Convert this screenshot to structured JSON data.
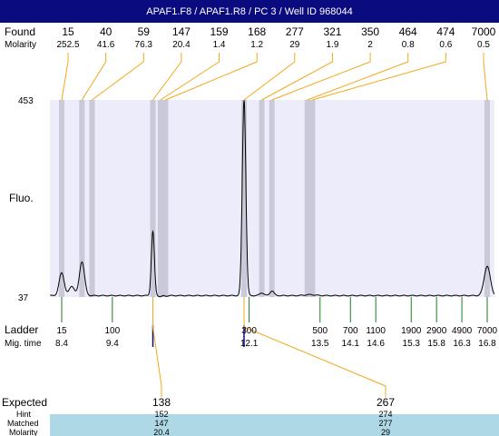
{
  "title": "APAF1.F8 / APAF1.R8 / PC 3 / Well ID 968044",
  "colors": {
    "title_bg": "#0b0b80",
    "plot_bg": "#ececfb",
    "peak_band": "#c9c9d9",
    "found_line": "#f2a81a",
    "ladder_line": "#1e7a1e",
    "expected_line": "#0b0b80",
    "matched_row": "#aed8e6",
    "trace": "#000000"
  },
  "labels": {
    "found": "Found",
    "molarity": "Molarity",
    "fluo": "Fluo.",
    "ladder": "Ladder",
    "mig_time": "Mig. time",
    "expected": "Expected",
    "hint": "Hint",
    "matched": "Matched",
    "molarity_bottom": "Molarity"
  },
  "chart_data": {
    "type": "line",
    "ylabel": "Fluo.",
    "ylim": [
      37,
      453
    ],
    "y_ticks": [
      37,
      453
    ],
    "xlim": [
      8.0,
      17.0
    ],
    "found": [
      {
        "size": "15",
        "molarity": "252.5",
        "time": 8.4
      },
      {
        "size": "40",
        "molarity": "41.6",
        "time": 8.8
      },
      {
        "size": "59",
        "molarity": "76.3",
        "time": 9.0
      },
      {
        "size": "147",
        "molarity": "20.4",
        "time": 10.2
      },
      {
        "size": "159",
        "molarity": "1.4",
        "time": 10.35
      },
      {
        "size": "168",
        "molarity": "1.2",
        "time": 10.45
      },
      {
        "size": "277",
        "molarity": "29",
        "time": 12.0
      },
      {
        "size": "321",
        "molarity": "1.9",
        "time": 12.35
      },
      {
        "size": "350",
        "molarity": "2",
        "time": 12.55
      },
      {
        "size": "464",
        "molarity": "0.8",
        "time": 13.25
      },
      {
        "size": "474",
        "molarity": "0.6",
        "time": 13.35
      },
      {
        "size": "7000",
        "molarity": "0.5",
        "time": 16.8
      }
    ],
    "ladder": [
      {
        "size": "15",
        "time": "8.4",
        "t": 8.4
      },
      {
        "size": "100",
        "time": "9.4",
        "t": 9.4
      },
      {
        "size": "300",
        "time": "12.1",
        "t": 12.1
      },
      {
        "size": "500",
        "time": "13.5",
        "t": 13.5
      },
      {
        "size": "700",
        "time": "14.1",
        "t": 14.1
      },
      {
        "size": "1100",
        "time": "14.6",
        "t": 14.6
      },
      {
        "size": "1900",
        "time": "15.3",
        "t": 15.3
      },
      {
        "size": "2900",
        "time": "15.8",
        "t": 15.8
      },
      {
        "size": "4900",
        "time": "16.3",
        "t": 16.3
      },
      {
        "size": "7000",
        "time": "16.8",
        "t": 16.8
      }
    ],
    "expected": [
      {
        "expected": "138",
        "hint": "152",
        "matched": "147",
        "molarity": "20.4",
        "time": 10.2
      },
      {
        "expected": "267",
        "hint": "274",
        "matched": "277",
        "molarity": "29",
        "time": 12.0
      }
    ],
    "trace": {
      "baseline": 40,
      "peaks": [
        {
          "t": 8.4,
          "h": 88,
          "w": 0.05
        },
        {
          "t": 8.6,
          "h": 60,
          "w": 0.05
        },
        {
          "t": 8.8,
          "h": 112,
          "w": 0.05
        },
        {
          "t": 10.2,
          "h": 175,
          "w": 0.03
        },
        {
          "t": 10.35,
          "h": 38,
          "w": 0.03
        },
        {
          "t": 10.45,
          "h": 39,
          "w": 0.03
        },
        {
          "t": 12.0,
          "h": 453,
          "w": 0.035
        },
        {
          "t": 12.35,
          "h": 46,
          "w": 0.04
        },
        {
          "t": 12.55,
          "h": 50,
          "w": 0.04
        },
        {
          "t": 13.3,
          "h": 42,
          "w": 0.1
        },
        {
          "t": 16.8,
          "h": 102,
          "w": 0.06
        }
      ]
    }
  }
}
